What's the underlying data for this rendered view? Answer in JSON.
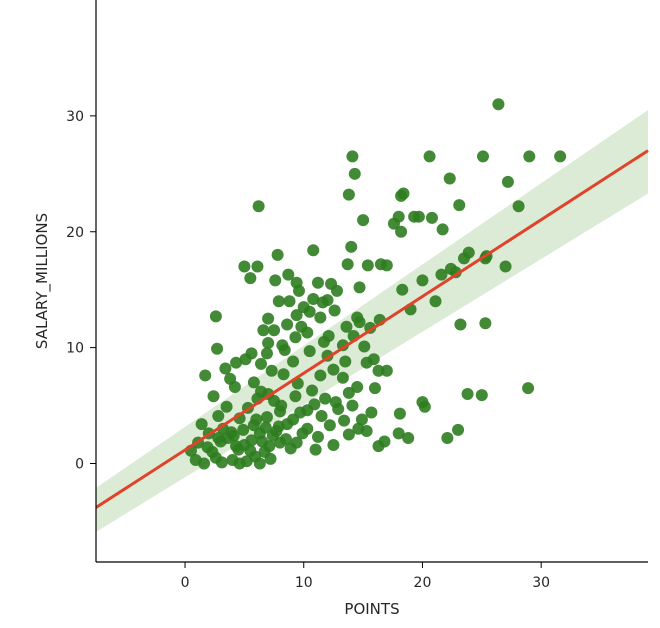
{
  "chart_data": {
    "type": "scatter",
    "title": "",
    "xlabel": "POINTS",
    "ylabel": "SALARY_MILLIONS",
    "xlim": [
      -7.5,
      39
    ],
    "ylim": [
      -8.5,
      40
    ],
    "xticks": [
      0,
      10,
      20,
      30
    ],
    "yticks": [
      0,
      10,
      20,
      30
    ],
    "grid": false,
    "colors": {
      "points": "#2e7d1f",
      "line": "#e0422a",
      "band": "#d3e6cc",
      "axis": "#000000"
    },
    "regression": {
      "x": [
        -7.5,
        39
      ],
      "y": [
        -3.8,
        27.0
      ],
      "ci_lower": [
        -5.9,
        23.3
      ],
      "ci_upper": [
        -2.1,
        30.5
      ]
    },
    "points": [
      [
        26.4,
        31.0
      ],
      [
        14.1,
        26.5
      ],
      [
        20.6,
        26.5
      ],
      [
        25.1,
        26.5
      ],
      [
        29.0,
        26.5
      ],
      [
        31.6,
        26.5
      ],
      [
        14.3,
        25.0
      ],
      [
        22.3,
        24.6
      ],
      [
        27.2,
        24.3
      ],
      [
        13.8,
        23.2
      ],
      [
        18.2,
        23.1
      ],
      [
        18.4,
        23.3
      ],
      [
        6.2,
        22.2
      ],
      [
        23.1,
        22.3
      ],
      [
        28.1,
        22.2
      ],
      [
        15.0,
        21.0
      ],
      [
        18.0,
        21.3
      ],
      [
        19.3,
        21.3
      ],
      [
        19.7,
        21.3
      ],
      [
        20.8,
        21.2
      ],
      [
        17.6,
        20.7
      ],
      [
        18.2,
        20.0
      ],
      [
        21.7,
        20.2
      ],
      [
        10.8,
        18.4
      ],
      [
        14.0,
        18.7
      ],
      [
        23.9,
        18.2
      ],
      [
        7.8,
        18.0
      ],
      [
        23.5,
        17.7
      ],
      [
        25.3,
        17.7
      ],
      [
        25.4,
        17.9
      ],
      [
        5.0,
        17.0
      ],
      [
        6.1,
        17.0
      ],
      [
        13.7,
        17.2
      ],
      [
        15.4,
        17.1
      ],
      [
        16.5,
        17.2
      ],
      [
        17.0,
        17.1
      ],
      [
        22.4,
        16.8
      ],
      [
        27.0,
        17.0
      ],
      [
        21.6,
        16.3
      ],
      [
        22.8,
        16.5
      ],
      [
        5.5,
        16.0
      ],
      [
        7.6,
        15.8
      ],
      [
        8.7,
        16.3
      ],
      [
        9.4,
        15.6
      ],
      [
        11.2,
        15.6
      ],
      [
        12.3,
        15.5
      ],
      [
        20.0,
        15.8
      ],
      [
        14.7,
        15.2
      ],
      [
        18.3,
        15.0
      ],
      [
        9.6,
        14.9
      ],
      [
        10.8,
        14.2
      ],
      [
        7.9,
        14.0
      ],
      [
        8.8,
        14.0
      ],
      [
        12.0,
        14.1
      ],
      [
        21.1,
        14.0
      ],
      [
        19.0,
        13.3
      ],
      [
        10.5,
        13.1
      ],
      [
        12.6,
        13.2
      ],
      [
        9.4,
        12.8
      ],
      [
        2.6,
        12.7
      ],
      [
        7.0,
        12.5
      ],
      [
        11.4,
        12.6
      ],
      [
        14.5,
        12.6
      ],
      [
        16.4,
        12.4
      ],
      [
        8.6,
        12.0
      ],
      [
        9.8,
        11.8
      ],
      [
        15.6,
        11.7
      ],
      [
        23.2,
        12.0
      ],
      [
        25.3,
        12.1
      ],
      [
        6.6,
        11.5
      ],
      [
        10.3,
        11.3
      ],
      [
        12.1,
        11.0
      ],
      [
        14.2,
        11.0
      ],
      [
        11.7,
        10.5
      ],
      [
        7.0,
        10.4
      ],
      [
        8.2,
        10.2
      ],
      [
        13.3,
        10.2
      ],
      [
        15.1,
        10.1
      ],
      [
        2.7,
        9.9
      ],
      [
        5.6,
        9.5
      ],
      [
        10.5,
        9.7
      ],
      [
        12.0,
        9.3
      ],
      [
        4.3,
        8.7
      ],
      [
        5.1,
        9.0
      ],
      [
        6.4,
        8.6
      ],
      [
        9.1,
        8.8
      ],
      [
        13.5,
        8.8
      ],
      [
        15.3,
        8.7
      ],
      [
        3.4,
        8.2
      ],
      [
        7.3,
        8.0
      ],
      [
        12.5,
        8.1
      ],
      [
        16.3,
        8.0
      ],
      [
        17.0,
        8.0
      ],
      [
        1.7,
        7.6
      ],
      [
        3.8,
        7.3
      ],
      [
        8.3,
        7.7
      ],
      [
        11.4,
        7.6
      ],
      [
        13.3,
        7.4
      ],
      [
        5.8,
        7.0
      ],
      [
        9.5,
        6.9
      ],
      [
        4.2,
        6.6
      ],
      [
        6.4,
        6.2
      ],
      [
        10.7,
        6.3
      ],
      [
        13.8,
        6.1
      ],
      [
        14.5,
        6.6
      ],
      [
        16.0,
        6.5
      ],
      [
        28.9,
        6.5
      ],
      [
        23.8,
        6.0
      ],
      [
        25.0,
        5.9
      ],
      [
        2.4,
        5.8
      ],
      [
        6.1,
        5.6
      ],
      [
        7.5,
        5.4
      ],
      [
        9.3,
        5.8
      ],
      [
        11.8,
        5.6
      ],
      [
        12.7,
        5.3
      ],
      [
        14.1,
        5.0
      ],
      [
        20.0,
        5.3
      ],
      [
        3.5,
        4.9
      ],
      [
        5.3,
        4.8
      ],
      [
        8.0,
        4.5
      ],
      [
        10.3,
        4.6
      ],
      [
        15.7,
        4.4
      ],
      [
        20.2,
        4.9
      ],
      [
        2.8,
        4.1
      ],
      [
        4.6,
        3.9
      ],
      [
        6.9,
        4.0
      ],
      [
        9.1,
        3.8
      ],
      [
        11.5,
        4.1
      ],
      [
        13.4,
        3.7
      ],
      [
        18.1,
        4.3
      ],
      [
        1.4,
        3.4
      ],
      [
        3.2,
        3.0
      ],
      [
        5.8,
        3.3
      ],
      [
        7.9,
        3.2
      ],
      [
        10.3,
        3.0
      ],
      [
        12.2,
        3.3
      ],
      [
        14.6,
        3.0
      ],
      [
        23.0,
        2.9
      ],
      [
        2.0,
        2.6
      ],
      [
        4.1,
        2.4
      ],
      [
        6.3,
        2.6
      ],
      [
        8.5,
        2.1
      ],
      [
        11.2,
        2.3
      ],
      [
        13.8,
        2.5
      ],
      [
        15.3,
        2.8
      ],
      [
        18.0,
        2.6
      ],
      [
        22.1,
        2.2
      ],
      [
        1.1,
        1.8
      ],
      [
        3.0,
        1.9
      ],
      [
        5.0,
        1.6
      ],
      [
        7.1,
        1.5
      ],
      [
        9.4,
        1.8
      ],
      [
        12.5,
        1.6
      ],
      [
        16.3,
        1.5
      ],
      [
        18.8,
        2.2
      ],
      [
        0.5,
        1.1
      ],
      [
        2.3,
        1.0
      ],
      [
        4.5,
        1.2
      ],
      [
        6.7,
        1.0
      ],
      [
        8.9,
        1.3
      ],
      [
        11.0,
        1.2
      ],
      [
        0.9,
        0.3
      ],
      [
        2.6,
        0.5
      ],
      [
        4.0,
        0.3
      ],
      [
        5.9,
        0.6
      ],
      [
        1.6,
        0.0
      ],
      [
        3.1,
        0.1
      ],
      [
        4.6,
        0.0
      ],
      [
        5.2,
        0.2
      ],
      [
        6.3,
        0.0
      ],
      [
        7.2,
        0.4
      ],
      [
        3.6,
        2.2
      ],
      [
        4.9,
        2.9
      ],
      [
        5.6,
        2.0
      ],
      [
        6.0,
        3.8
      ],
      [
        6.8,
        3.1
      ],
      [
        7.4,
        2.4
      ],
      [
        8.0,
        1.8
      ],
      [
        4.3,
        1.5
      ],
      [
        3.9,
        2.7
      ],
      [
        5.5,
        1.1
      ],
      [
        6.5,
        1.9
      ],
      [
        7.7,
        2.8
      ],
      [
        8.6,
        3.4
      ],
      [
        9.9,
        2.6
      ],
      [
        2.8,
        2.2
      ],
      [
        1.9,
        1.4
      ],
      [
        7.0,
        6.0
      ],
      [
        8.1,
        5.0
      ],
      [
        9.7,
        4.4
      ],
      [
        10.9,
        5.1
      ],
      [
        12.9,
        4.7
      ],
      [
        14.9,
        3.8
      ],
      [
        16.8,
        1.9
      ],
      [
        9.3,
        10.9
      ],
      [
        10.0,
        13.5
      ],
      [
        11.6,
        13.9
      ],
      [
        12.8,
        14.9
      ],
      [
        6.9,
        9.5
      ],
      [
        8.4,
        9.8
      ],
      [
        7.5,
        11.5
      ],
      [
        13.6,
        11.8
      ],
      [
        14.7,
        12.2
      ],
      [
        15.9,
        9.0
      ]
    ]
  }
}
